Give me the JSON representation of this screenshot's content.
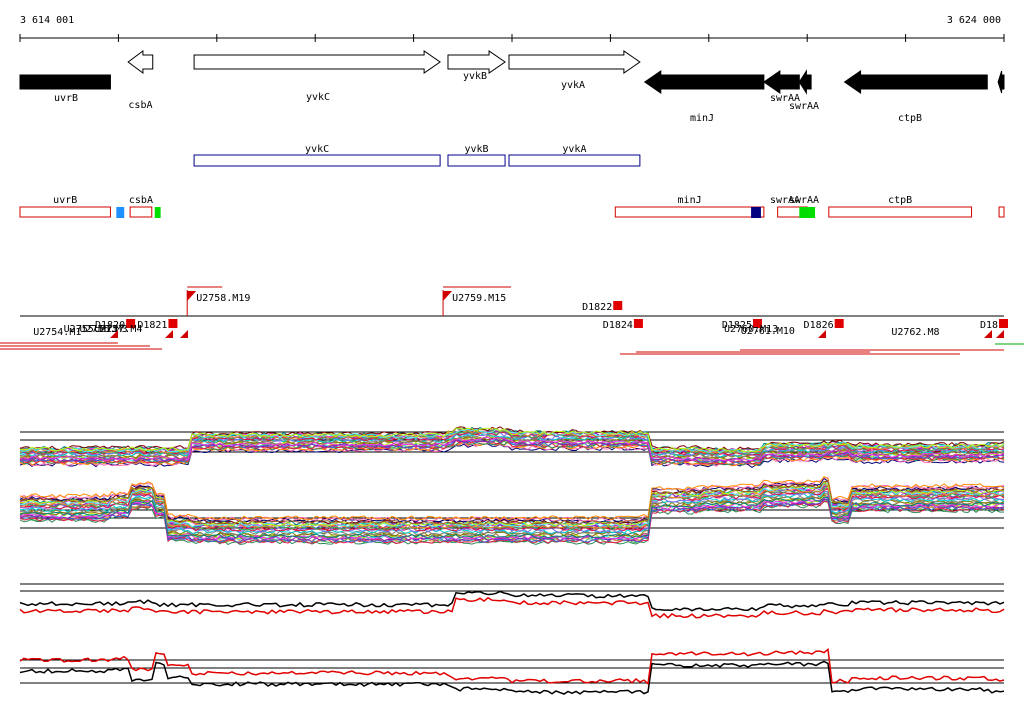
{
  "axis": {
    "start_label": "3 614 001",
    "end_label": "3 624 000"
  },
  "genes": [
    {
      "name": "uvrB",
      "strand": "-",
      "filled": true,
      "start": 3614001,
      "end": 3614920
    },
    {
      "name": "csbA",
      "strand": "-",
      "filled": false,
      "start": 3615100,
      "end": 3615350
    },
    {
      "name": "yvkC",
      "strand": "+",
      "filled": false,
      "start": 3615770,
      "end": 3618270
    },
    {
      "name": "yvkB",
      "strand": "+",
      "filled": false,
      "start": 3618350,
      "end": 3618930
    },
    {
      "name": "yvkA",
      "strand": "+",
      "filled": false,
      "start": 3618970,
      "end": 3620300
    },
    {
      "name": "minJ",
      "strand": "-",
      "filled": true,
      "start": 3620350,
      "end": 3621560
    },
    {
      "name": "swrAA",
      "strand": "-",
      "filled": true,
      "start": 3621560,
      "end": 3621920
    },
    {
      "name": "swrAA",
      "strand": "-",
      "filled": true,
      "start": 3621920,
      "end": 3622040
    },
    {
      "name": "ctpB",
      "strand": "-",
      "filled": true,
      "start": 3622380,
      "end": 3623830
    },
    {
      "name": "",
      "strand": "-",
      "filled": true,
      "start": 3623940,
      "end": 3624000
    }
  ],
  "operons_blue": [
    {
      "name": "yvkC",
      "start": 3615770,
      "end": 3618270
    },
    {
      "name": "yvkB",
      "start": 3618350,
      "end": 3618930
    },
    {
      "name": "yvkA",
      "start": 3618970,
      "end": 3620300
    }
  ],
  "operons_red": [
    {
      "name": "uvrB",
      "start": 3614001,
      "end": 3614920
    },
    {
      "name": "csbA",
      "start": 3615120,
      "end": 3615340
    },
    {
      "name": "minJ",
      "start": 3620050,
      "end": 3621560
    },
    {
      "name": "swrAA",
      "start": 3621700,
      "end": 3621950
    },
    {
      "name": "swrAA",
      "start": 3621930,
      "end": 3622000
    },
    {
      "name": "ctpB",
      "start": 3622220,
      "end": 3623670
    },
    {
      "name": "",
      "start": 3623950,
      "end": 3624000
    }
  ],
  "feature_blocks": [
    {
      "start": 3614980,
      "end": 3615060,
      "color": "#1e90ff"
    },
    {
      "start": 3615370,
      "end": 3615430,
      "color": "#00dd00"
    },
    {
      "start": 3621430,
      "end": 3621530,
      "color": "#000080"
    },
    {
      "start": 3621920,
      "end": 3622080,
      "color": "#00dd00"
    }
  ],
  "upshifts": [
    {
      "label": "U2758.M19",
      "pos": 3615700
    },
    {
      "label": "U2759.M15",
      "pos": 3618300
    }
  ],
  "downshifts": [
    {
      "label": "D1822",
      "pos": 3620070
    },
    {
      "label": "D1820",
      "pos": 3615120
    },
    {
      "label": "D1821",
      "pos": 3615550
    },
    {
      "label": "D1824",
      "pos": 3620280
    },
    {
      "label": "D1825",
      "pos": 3621490
    },
    {
      "label": "D1826",
      "pos": 3622320
    },
    {
      "label": "D18",
      "pos": 3623990
    }
  ],
  "lower_labels": [
    {
      "label": "U2754.M1",
      "pos": 3614380
    },
    {
      "label": "U2755.M11",
      "pos": 3614720
    },
    {
      "label": "U2756.M3",
      "pos": 3614850
    },
    {
      "label": "U2757.M4",
      "pos": 3615000
    },
    {
      "label": "U2760.M13",
      "pos": 3621430
    },
    {
      "label": "U2761.M10",
      "pos": 3621600
    },
    {
      "label": "U2762.M8",
      "pos": 3623100
    }
  ]
}
